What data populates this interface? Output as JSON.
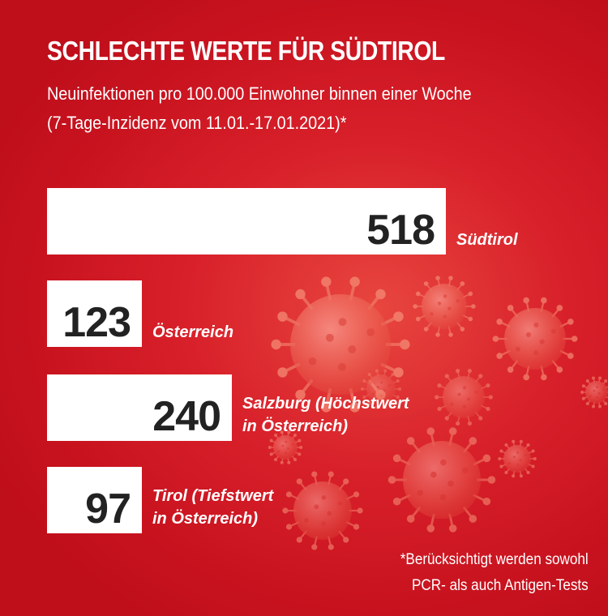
{
  "title": "SCHLECHTE WERTE FÜR SÜDTIROL",
  "subtitle_line1": "Neuinfektionen pro 100.000 Einwohner binnen einer Woche",
  "subtitle_line2": "(7-Tage-Inzidenz vom 11.01.-17.01.2021)*",
  "footnote_line1": "*Berücksichtigt werden sowohl",
  "footnote_line2": "PCR- als auch Antigen-Tests",
  "colors": {
    "background": "#d8202a",
    "bar": "#ffffff",
    "value_text": "#222222"
  },
  "decoration": "coronavirus-icons",
  "chart_data": {
    "type": "bar",
    "orientation": "horizontal",
    "title": "SCHLECHTE WERTE FÜR SÜDTIROL",
    "categories": [
      "Südtirol",
      "Österreich",
      "Salzburg (Höchstwert in Österreich)",
      "Tirol (Tiefstwert in Österreich)"
    ],
    "values": [
      518,
      123,
      240,
      97
    ],
    "data_labels": [
      "518",
      "123",
      "240",
      "97"
    ],
    "label_lines": [
      [
        "Südtirol"
      ],
      [
        "Österreich"
      ],
      [
        "Salzburg (Höchstwert",
        "in Österreich)"
      ],
      [
        "Tirol (Tiefstwert",
        "in Österreich)"
      ]
    ],
    "grid": false,
    "legend": "none"
  }
}
